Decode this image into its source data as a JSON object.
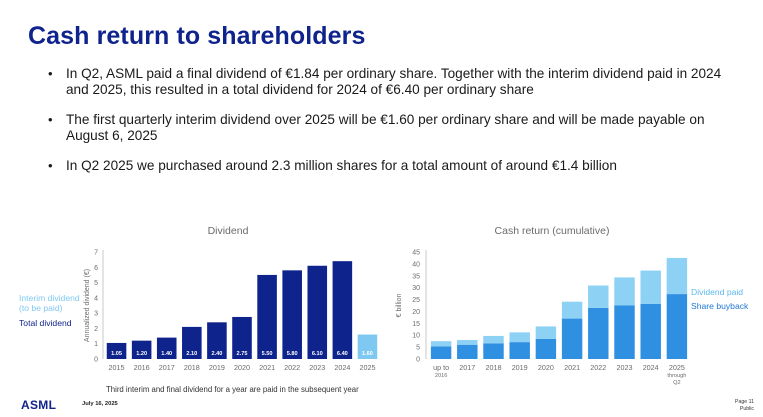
{
  "title": "Cash return to shareholders",
  "bullets": [
    "In Q2, ASML paid a final dividend of €1.84 per ordinary share. Together with the interim dividend paid in 2024 and 2025, this resulted in a total dividend for 2024 of €6.40 per ordinary share",
    "The first quarterly interim dividend over 2025 will be €1.60 per ordinary share and will be made payable on August 6, 2025",
    "In Q2 2025 we purchased around 2.3 million shares for a total amount of around €1.4 billion"
  ],
  "legend_left": {
    "interim": "Interim dividend\n(to be paid)",
    "total": "Total dividend"
  },
  "legend_right": {
    "dividend": "Dividend paid",
    "buyback": "Share buyback"
  },
  "colors": {
    "title": "#0f238c",
    "total_dividend": "#0f238c",
    "interim_dividend": "#7fc8f2",
    "share_buyback": "#2f8fe0",
    "dividend_paid": "#8dd1f5"
  },
  "chart_data": [
    {
      "type": "bar",
      "title": "Dividend",
      "ylabel": "Annualized dividend (€)",
      "ylim": [
        0,
        7
      ],
      "yticks": [
        0,
        1,
        2,
        3,
        4,
        5,
        6,
        7
      ],
      "categories": [
        "2015",
        "2016",
        "2017",
        "2018",
        "2019",
        "2020",
        "2021",
        "2022",
        "2023",
        "2024",
        "2025"
      ],
      "values": [
        1.05,
        1.2,
        1.4,
        2.1,
        2.4,
        2.75,
        5.5,
        5.8,
        6.1,
        6.4,
        1.6
      ],
      "labels": [
        "1.05",
        "1.20",
        "1.40",
        "2.10",
        "2.40",
        "2.75",
        "5.50",
        "5.80",
        "6.10",
        "6.40",
        "1.60"
      ],
      "series_type": [
        "total",
        "total",
        "total",
        "total",
        "total",
        "total",
        "total",
        "total",
        "total",
        "total",
        "interim"
      ]
    },
    {
      "type": "bar",
      "stacked": true,
      "title": "Cash return (cumulative)",
      "ylabel": "€ billion",
      "ylim": [
        0,
        45
      ],
      "yticks": [
        0,
        5,
        10,
        15,
        20,
        25,
        30,
        35,
        40,
        45
      ],
      "categories": [
        "up to\n2016",
        "2017",
        "2018",
        "2019",
        "2020",
        "2021",
        "2022",
        "2023",
        "2024",
        "2025\nthrough\nQ2"
      ],
      "series": [
        {
          "name": "Share buyback",
          "values": [
            5.3,
            6.0,
            6.6,
            7.1,
            8.5,
            17.0,
            21.5,
            22.5,
            23.2,
            27.3
          ]
        },
        {
          "name": "Dividend paid",
          "values": [
            2.2,
            2.0,
            3.1,
            4.1,
            5.2,
            7.1,
            9.4,
            11.8,
            14.0,
            15.2
          ]
        }
      ]
    }
  ],
  "footnote": "Third interim and final dividend for a year are paid in the subsequent year",
  "footer": {
    "logo": "ASML",
    "date": "July 16, 2025",
    "page": "Page 11",
    "classification": "Public"
  }
}
